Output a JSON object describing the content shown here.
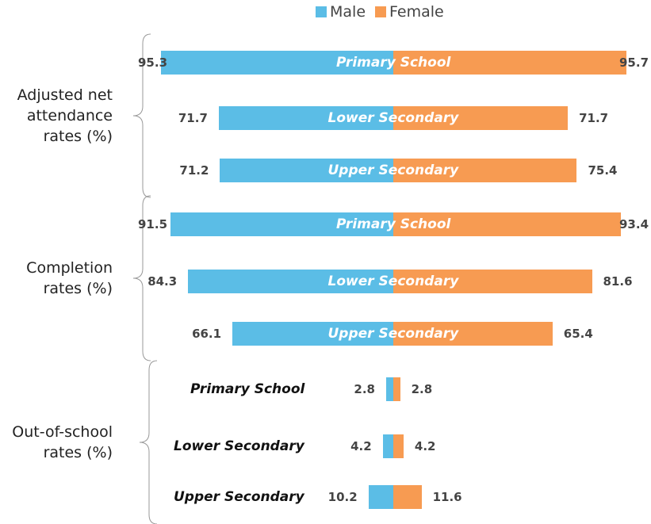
{
  "chart_data": {
    "type": "butterfly",
    "series": [
      {
        "name": "Male",
        "color": "#5bbde6",
        "values": [
          95.3,
          71.7,
          71.2,
          91.5,
          84.3,
          66.1,
          2.8,
          4.2,
          10.2
        ]
      },
      {
        "name": "Female",
        "color": "#f79b52",
        "values": [
          95.7,
          71.7,
          75.4,
          93.4,
          81.6,
          65.4,
          2.8,
          4.2,
          11.6
        ]
      }
    ],
    "categories": [
      "Primary School",
      "Lower Secondary",
      "Upper Secondary",
      "Primary School",
      "Lower Secondary",
      "Upper Secondary",
      "Primary School",
      "Lower Secondary",
      "Upper Secondary"
    ],
    "groups": [
      {
        "label": "Adjusted net attendance rates (%)",
        "rows": [
          0,
          1,
          2
        ]
      },
      {
        "label": "Completion rates (%)",
        "rows": [
          3,
          4,
          5
        ]
      },
      {
        "label": "Out-of-school rates (%)",
        "rows": [
          6,
          7,
          8
        ]
      }
    ]
  }
}
